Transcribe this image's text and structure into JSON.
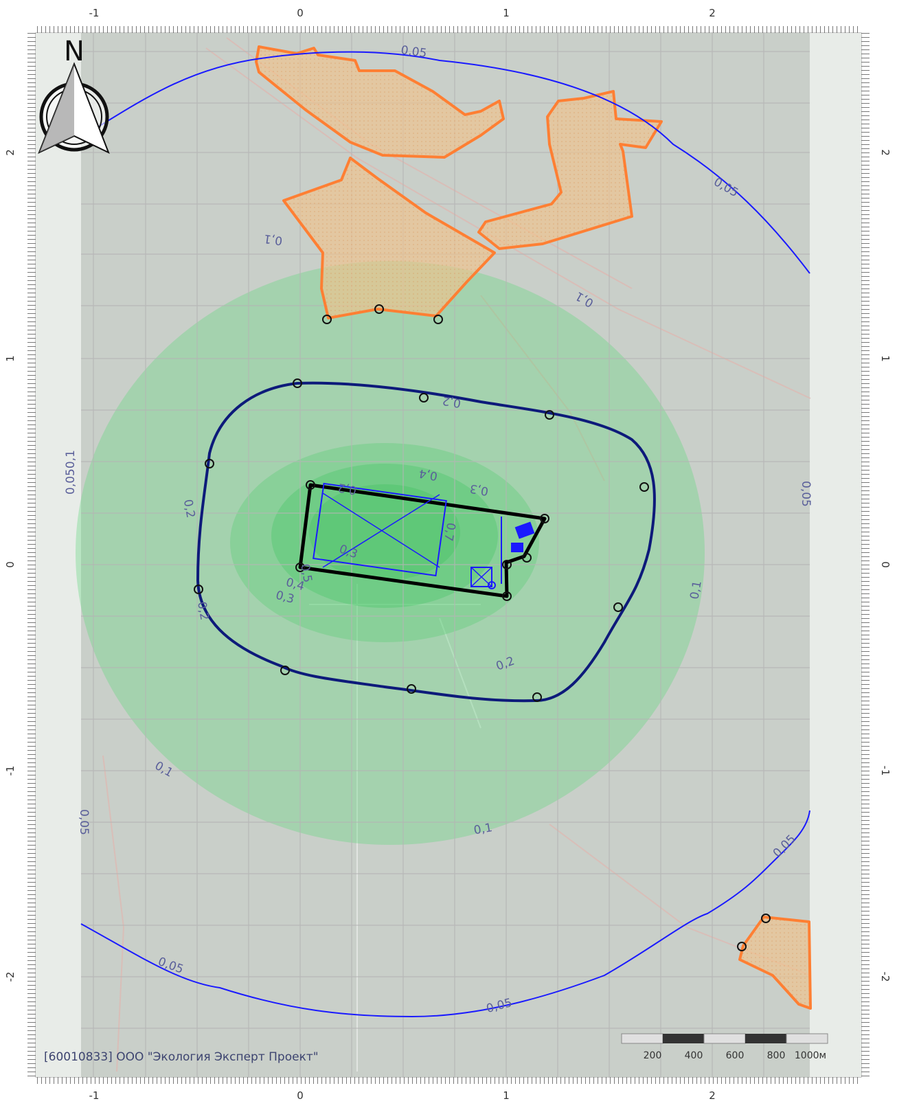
{
  "map": {
    "credit": "[60010833] ООО \"Экология Эксперт Проект\"",
    "north_label": "N",
    "colors": {
      "contour_line": "#1a1aff",
      "sanitary_zone": "#0d1a7a",
      "residential_fill": "#f2c48c",
      "residential_stroke": "#ff7f33",
      "site_outline": "#000000",
      "heat_green": "#5fd87a",
      "grid": "#b5b5b5",
      "basemap": "#c9cfc9"
    },
    "x_ticks": [
      "-1",
      "0",
      "1",
      "2"
    ],
    "y_ticks": [
      "2",
      "1",
      "0",
      "-1",
      "-2"
    ],
    "scale_bar": {
      "labels": [
        "200",
        "400",
        "600",
        "800",
        "1000м"
      ]
    },
    "contour_labels": [
      "0,05",
      "0,05",
      "0,1",
      "0,1",
      "0,050,1",
      "0,05",
      "0,2",
      "0,2",
      "0,2",
      "0,2",
      "0,2",
      "0,4",
      "0,3",
      "0,3",
      "0,7",
      "0,5",
      "0,4",
      "0,3",
      "0,1",
      "0,1",
      "0,1",
      "0,05",
      "0,05",
      "0,05",
      "0,05"
    ]
  }
}
